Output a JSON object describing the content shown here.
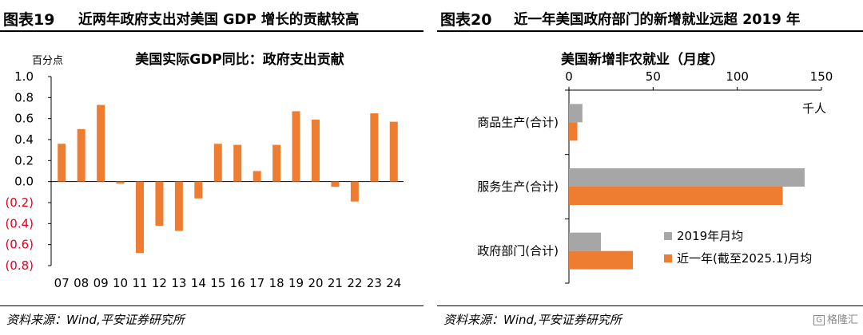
{
  "figures": [
    {
      "number": "图表19",
      "title": "近两年政府支出对美国 GDP 增长的贡献较高",
      "source": "资料来源：Wind,平安证券研究所"
    },
    {
      "number": "图表20",
      "title": "近一年美国政府部门的新增就业远超 2019 年",
      "source": "资料来源：Wind,平安证券研究所"
    }
  ],
  "watermark": {
    "icon": "G",
    "text": "格隆汇"
  },
  "chart_data": [
    {
      "type": "bar",
      "title": "美国实际GDP同比：政府支出贡献",
      "ylabel": "百分点",
      "xlabel": "",
      "ylim": [
        -0.8,
        1.0
      ],
      "yticks": [
        1.0,
        0.8,
        0.6,
        0.4,
        0.2,
        0.0,
        -0.2,
        -0.4,
        -0.6,
        -0.8
      ],
      "ytick_labels": [
        "1.0",
        "0.8",
        "0.6",
        "0.4",
        "0.2",
        "0.0",
        "(0.2)",
        "(0.4)",
        "(0.6)",
        "(0.8)"
      ],
      "negative_tick_color": "#e3001b",
      "bar_color": "#ee7d31",
      "categories": [
        "07",
        "08",
        "09",
        "10",
        "11",
        "12",
        "13",
        "14",
        "15",
        "16",
        "17",
        "18",
        "19",
        "20",
        "21",
        "22",
        "23",
        "24"
      ],
      "values": [
        0.36,
        0.5,
        0.73,
        -0.02,
        -0.68,
        -0.42,
        -0.47,
        -0.16,
        0.36,
        0.35,
        0.1,
        0.35,
        0.67,
        0.59,
        -0.05,
        -0.19,
        0.65,
        0.57
      ],
      "grid": false
    },
    {
      "type": "bar",
      "orientation": "horizontal",
      "title": "美国新增非农就业（月度）",
      "unit_label": "千人",
      "xlim": [
        0,
        150
      ],
      "xticks": [
        0,
        50,
        100,
        150
      ],
      "categories": [
        "商品生产(合计)",
        "服务生产(合计)",
        "政府部门(合计)"
      ],
      "series": [
        {
          "name": "2019年月均",
          "color": "#a6a6a6",
          "values": [
            8,
            140,
            19
          ]
        },
        {
          "name": "近一年(截至2025.1)月均",
          "color": "#ee7d31",
          "values": [
            5,
            127,
            38
          ]
        }
      ],
      "legend": "bottom-right",
      "grid": false
    }
  ]
}
